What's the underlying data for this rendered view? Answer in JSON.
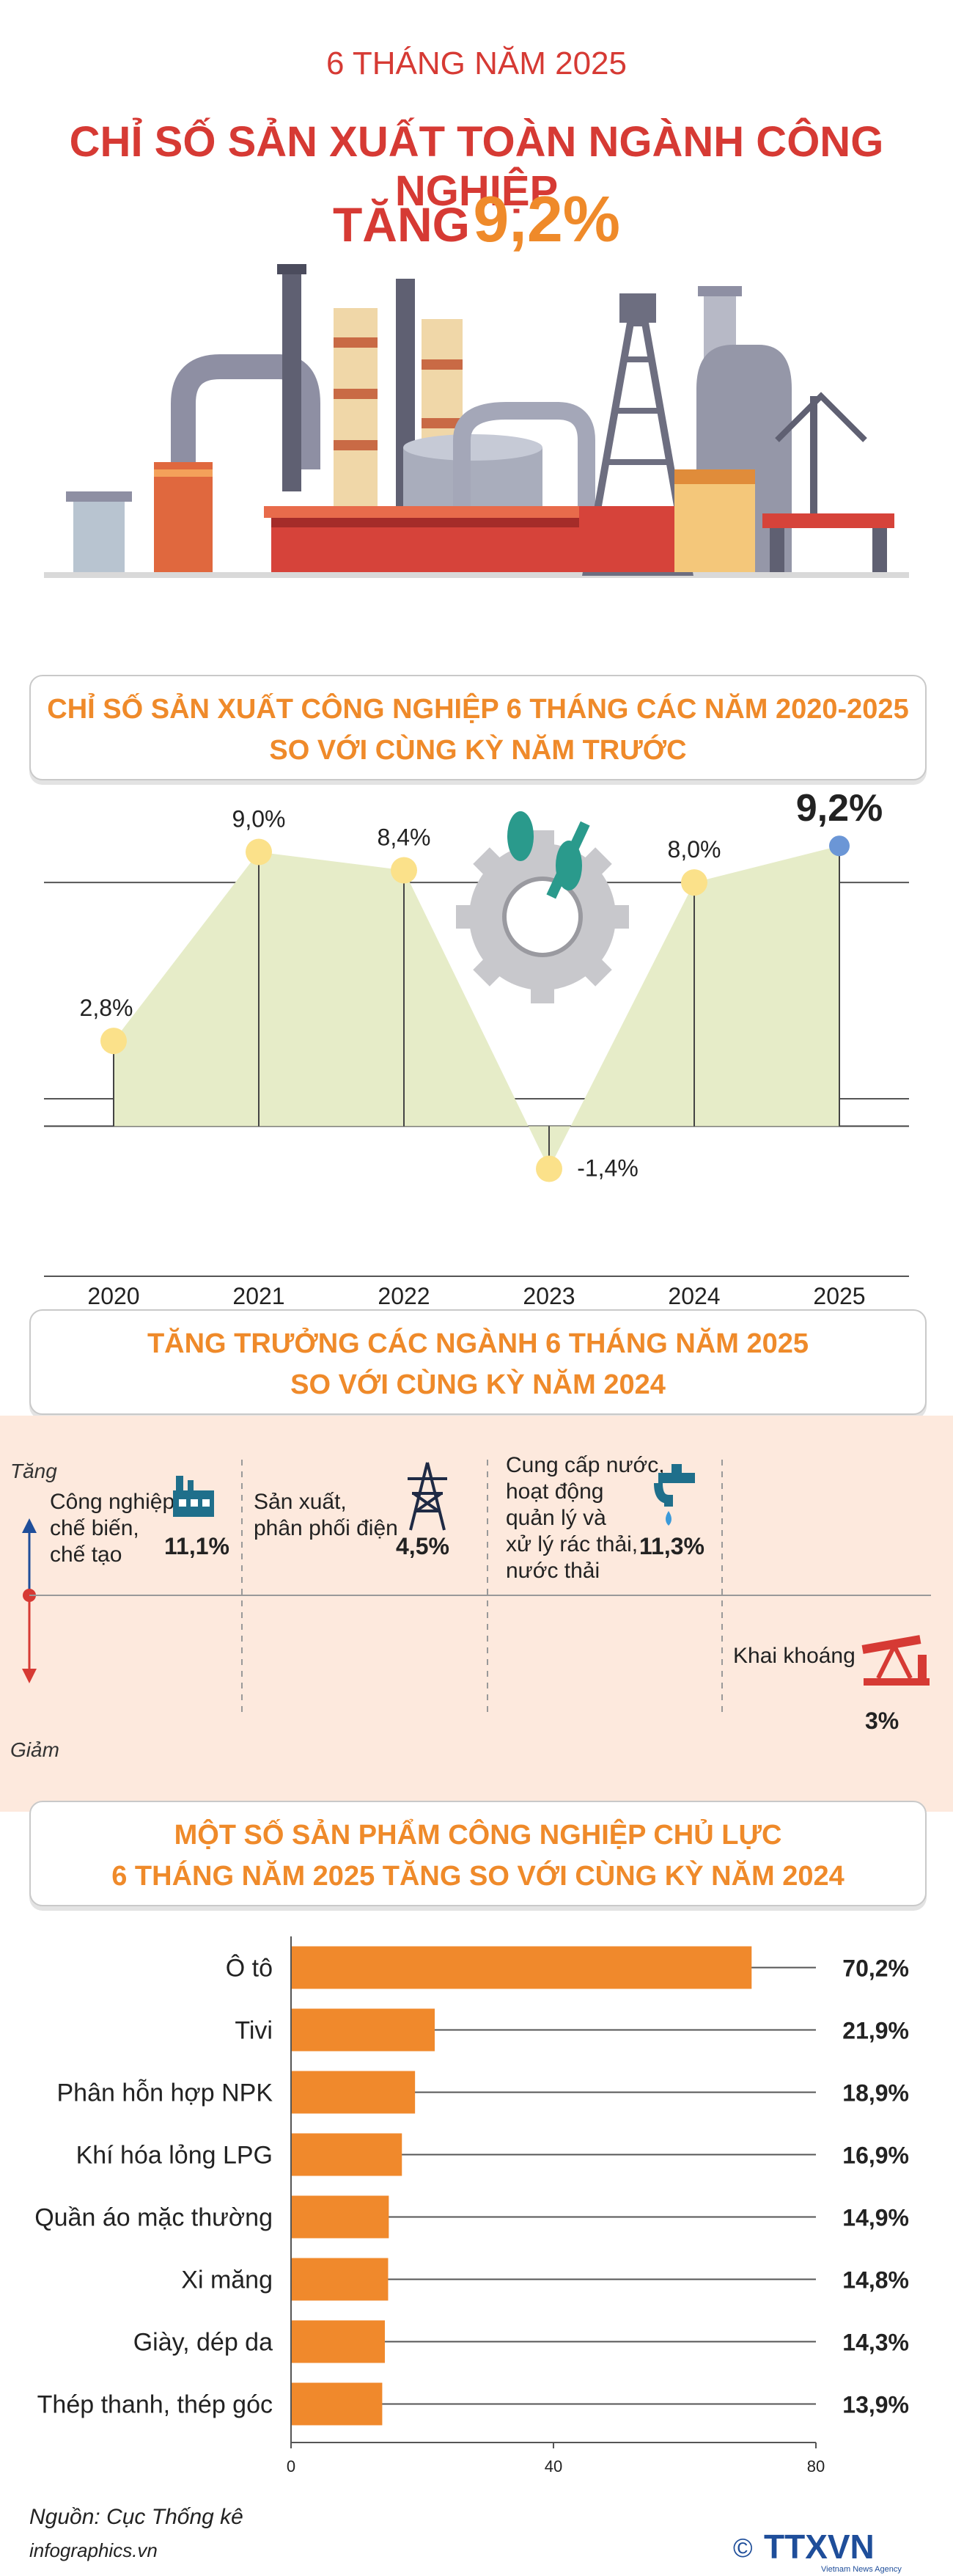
{
  "header": {
    "subtitle": "6 THÁNG NĂM 2025",
    "title": "CHỈ SỐ SẢN XUẤT TOÀN NGÀNH CÔNG NGHIỆP",
    "tang_word": "TĂNG",
    "tang_value": "9,2%"
  },
  "section1": {
    "line1": "CHỈ SỐ SẢN XUẤT CÔNG NGHIỆP 6 THÁNG CÁC NĂM 2020-2025",
    "line2": "SO VỚI CÙNG KỲ NĂM TRƯỚC"
  },
  "section2": {
    "line1": "TĂNG TRƯỞNG CÁC NGÀNH 6 THÁNG NĂM 2025",
    "line2": "SO VỚI CÙNG KỲ NĂM 2024"
  },
  "section3": {
    "line1": "MỘT SỐ SẢN PHẨM CÔNG NGHIỆP CHỦ LỰC",
    "line2": "6 THÁNG NĂM 2025 TĂNG SO VỚI CÙNG KỲ NĂM 2024"
  },
  "growth": {
    "up_label": "Tăng",
    "down_label": "Giảm",
    "items": [
      {
        "name_lines": [
          "Công nghiệp",
          "chế biến,",
          "chế tạo"
        ],
        "value": "11,1%",
        "icon": "factory-icon"
      },
      {
        "name_lines": [
          "Sản xuất,",
          "phân phối điện"
        ],
        "value": "4,5%",
        "icon": "power-tower-icon"
      },
      {
        "name_lines": [
          "Cung cấp nước,",
          "hoạt động",
          "quản lý và",
          "xử lý rác thải,",
          "nước thải"
        ],
        "value": "11,3%",
        "icon": "water-tap-icon"
      },
      {
        "name_lines": [
          "Khai khoáng"
        ],
        "value": "3%",
        "icon": "oil-pump-icon"
      }
    ]
  },
  "chart_data": [
    {
      "type": "line",
      "title": "CHỈ SỐ SẢN XUẤT CÔNG NGHIỆP 6 THÁNG CÁC NĂM 2020-2025 SO VỚI CÙNG KỲ NĂM TRƯỚC",
      "x": [
        "2020",
        "2021",
        "2022",
        "2023",
        "2024",
        "2025"
      ],
      "values": [
        2.8,
        9.0,
        8.4,
        -1.4,
        8.0,
        9.2
      ],
      "labels": [
        "2,8%",
        "9,0%",
        "8,4%",
        "-1,4%",
        "8,0%",
        "9,2%"
      ],
      "ylim": [
        -3,
        10
      ],
      "grid": true,
      "colors": {
        "area": "#e6ecc8",
        "point": "#fbe18a",
        "highlight": "#6b96d6"
      }
    },
    {
      "type": "bar",
      "orientation": "horizontal",
      "title": "MỘT SỐ SẢN PHẨM CÔNG NGHIỆP CHỦ LỰC 6 THÁNG NĂM 2025 TĂNG SO VỚI CÙNG KỲ NĂM 2024",
      "categories": [
        "Ô tô",
        "Tivi",
        "Phân hỗn hợp NPK",
        "Khí hóa lỏng LPG",
        "Quần áo mặc thường",
        "Xi măng",
        "Giày, dép da",
        "Thép thanh, thép góc"
      ],
      "values": [
        70.2,
        21.9,
        18.9,
        16.9,
        14.9,
        14.8,
        14.3,
        13.9
      ],
      "labels": [
        "70,2%",
        "21,9%",
        "18,9%",
        "16,9%",
        "14,9%",
        "14,8%",
        "14,3%",
        "13,9%"
      ],
      "xlim": [
        0,
        80
      ],
      "xticks": [
        "0",
        "40",
        "80"
      ],
      "colors": {
        "bar": "#f0892c"
      }
    }
  ],
  "footer": {
    "source": "Nguồn: Cục Thống kê",
    "site": "infographics.vn",
    "logo_text": "TTXVN",
    "logo_sub": "Vietnam News Agency",
    "logo_symbol": "©"
  }
}
